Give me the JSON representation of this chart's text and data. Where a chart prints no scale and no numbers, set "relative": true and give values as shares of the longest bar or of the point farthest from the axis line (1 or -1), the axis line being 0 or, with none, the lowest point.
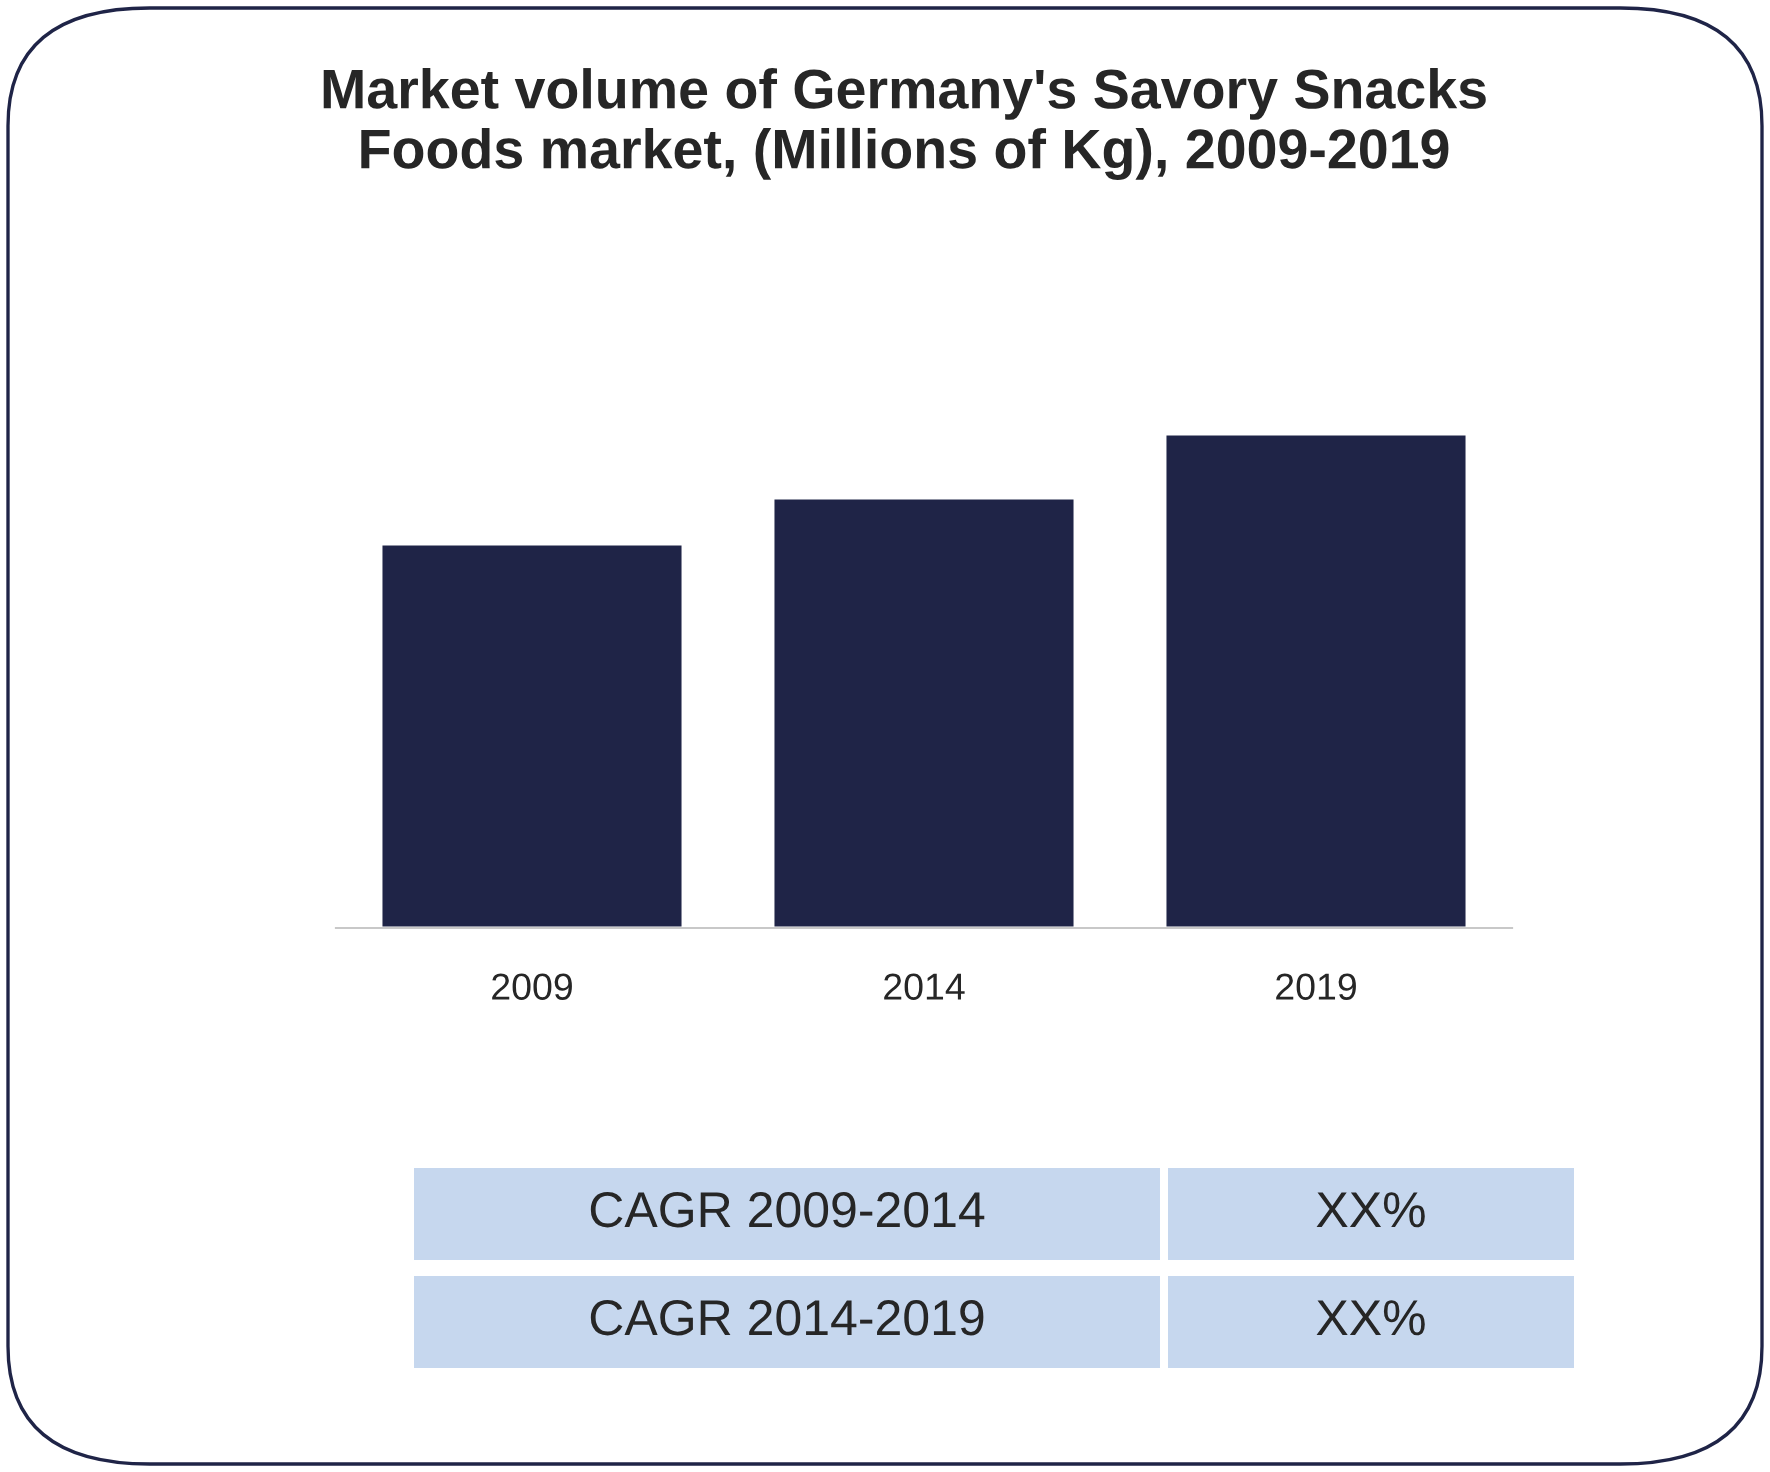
{
  "chart_data": {
    "type": "bar",
    "title": "Market volume of Germany's Savory Snacks\nFoods market, (Millions of Kg), 2009-2019",
    "categories": [
      "2009",
      "2014",
      "2019"
    ],
    "values": [
      0.777,
      0.87,
      1
    ],
    "color": "#1f2447",
    "relative": true,
    "annotations": [
      "CAGR 2009-2014",
      "XX%",
      "CAGR 2014-2019",
      "XX%"
    ]
  }
}
